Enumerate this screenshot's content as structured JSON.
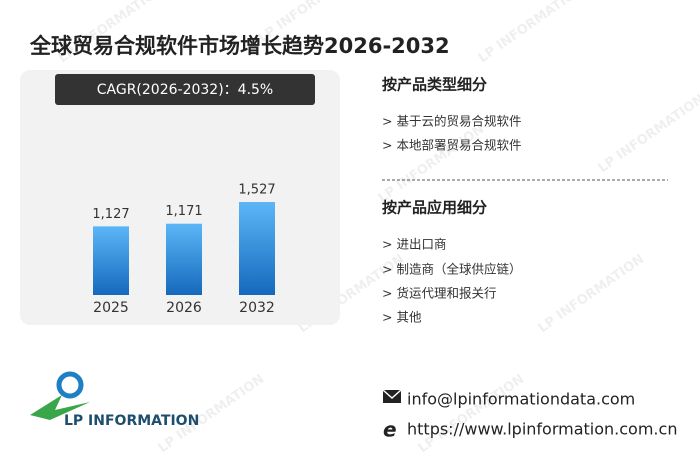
{
  "chart_data": {
    "type": "bar",
    "title": "全球贸易合规软件市场增长趋势2026-2032",
    "annotation": "CAGR(2026-2032)：4.5%",
    "categories": [
      "2025",
      "2026",
      "2032"
    ],
    "values": [
      1127,
      1171,
      1527
    ],
    "value_labels": [
      "1,127",
      "1,171",
      "1,527"
    ],
    "color": "#2f8de0"
  },
  "segments": [
    {
      "title": "按产品类型细分",
      "items": [
        "> 基于云的贸易合规软件",
        "> 本地部署贸易合规软件"
      ]
    },
    {
      "title": "按产品应用细分",
      "items": [
        "> 进出口商",
        "> 制造商（全球供应链）",
        "> 货运代理和报关行",
        "> 其他"
      ]
    }
  ],
  "logo": "LP INFORMATION",
  "contact": {
    "email": "info@lpinformationdata.com",
    "website": "https://www.lpinformation.com.cn"
  }
}
